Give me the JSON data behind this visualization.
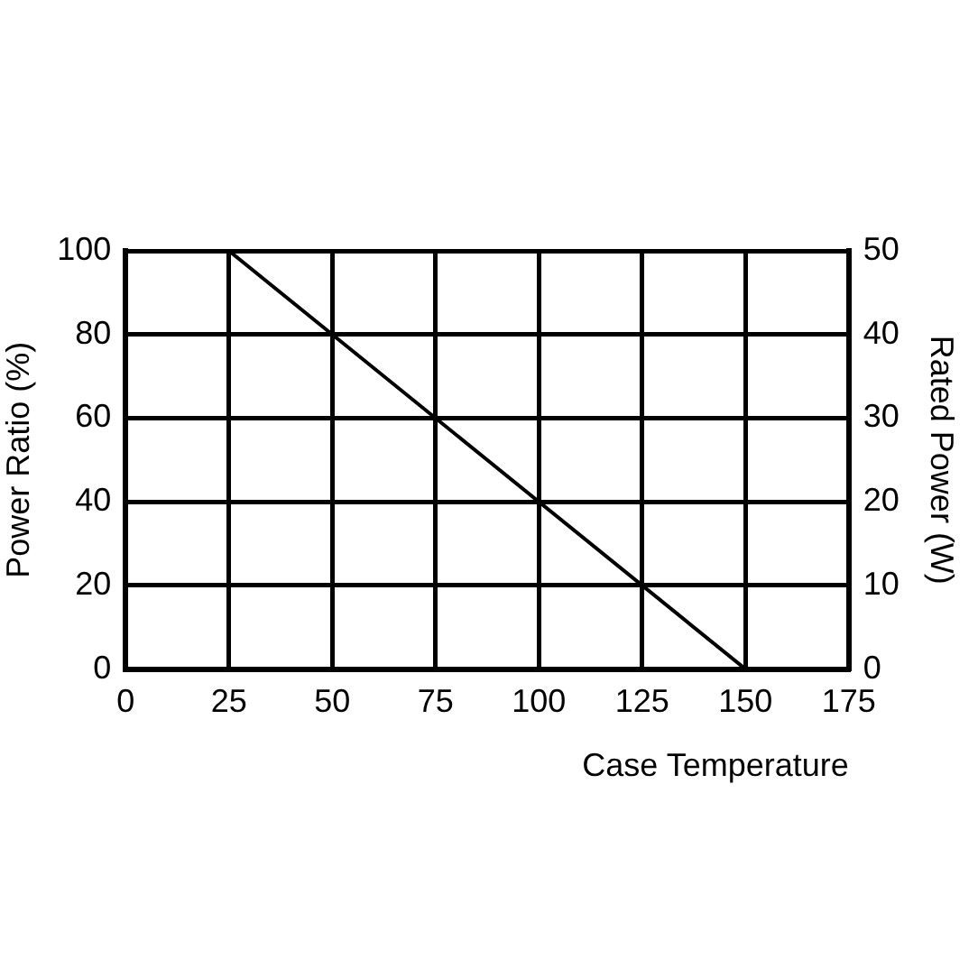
{
  "chart_data": {
    "type": "line",
    "xlabel": "Case Temperature",
    "ylabel": "Power Ratio (%)",
    "y2label": "Rated Power (W)",
    "x": [
      0,
      25,
      150
    ],
    "series": [
      {
        "color": "#000000",
        "values": [
          100,
          100,
          0
        ]
      }
    ],
    "xlim": [
      0,
      175
    ],
    "xticks": [
      0,
      25,
      50,
      75,
      100,
      125,
      150,
      175
    ],
    "ylim": [
      0,
      100
    ],
    "yticks": [
      0,
      20,
      40,
      60,
      80,
      100
    ],
    "y2lim": [
      0,
      50
    ],
    "y2ticks": [
      0,
      10,
      20,
      30,
      40,
      50
    ],
    "grid": true
  }
}
